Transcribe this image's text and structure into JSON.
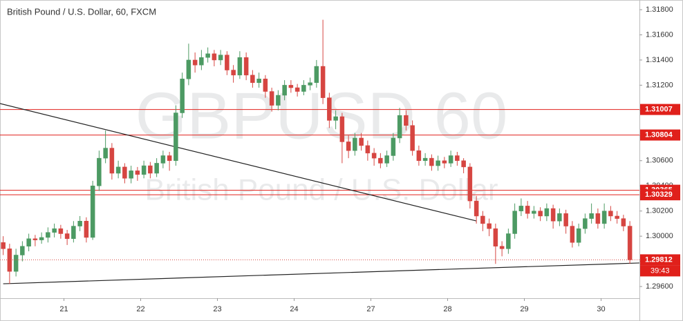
{
  "chart_data": {
    "type": "candlestick",
    "title": "British Pound / U.S. Dollar, 60, FXCM",
    "watermark": "GBPUSD 60",
    "watermark_subtitle": "British Pound / U.S. Dollar",
    "up_color": "#4c9a63",
    "down_color": "#d64541",
    "xlim": [
      0,
      200
    ],
    "xticks": [
      {
        "value": 20,
        "label": "21"
      },
      {
        "value": 44,
        "label": "22"
      },
      {
        "value": 68,
        "label": "23"
      },
      {
        "value": 92,
        "label": "24"
      },
      {
        "value": 116,
        "label": "27"
      },
      {
        "value": 140,
        "label": "28"
      },
      {
        "value": 164,
        "label": "29"
      },
      {
        "value": 188,
        "label": "30"
      }
    ],
    "ylim": [
      1.29507,
      1.31877
    ],
    "yticks": [
      {
        "value": 1.318,
        "label": "1.31800"
      },
      {
        "value": 1.316,
        "label": "1.31600"
      },
      {
        "value": 1.314,
        "label": "1.31400"
      },
      {
        "value": 1.312,
        "label": "1.31200"
      },
      {
        "value": 1.31,
        "label": "1.31000"
      },
      {
        "value": 1.308,
        "label": "1.30800"
      },
      {
        "value": 1.306,
        "label": "1.30600"
      },
      {
        "value": 1.304,
        "label": "1.30400"
      },
      {
        "value": 1.302,
        "label": "1.30200"
      },
      {
        "value": 1.3,
        "label": "1.30000"
      },
      {
        "value": 1.298,
        "label": "1.29800"
      },
      {
        "value": 1.296,
        "label": "1.29600"
      }
    ],
    "x": [
      1,
      3,
      5,
      7,
      9,
      11,
      13,
      15,
      17,
      19,
      21,
      23,
      25,
      27,
      29,
      31,
      33,
      35,
      37,
      39,
      41,
      43,
      45,
      47,
      49,
      51,
      53,
      55,
      57,
      59,
      61,
      63,
      65,
      67,
      69,
      71,
      73,
      75,
      77,
      79,
      81,
      83,
      85,
      87,
      89,
      91,
      93,
      95,
      97,
      99,
      101,
      103,
      105,
      107,
      109,
      111,
      113,
      115,
      117,
      119,
      121,
      123,
      125,
      127,
      129,
      131,
      133,
      135,
      137,
      139,
      141,
      143,
      145,
      147,
      149,
      151,
      153,
      155,
      157,
      159,
      161,
      163,
      165,
      167,
      169,
      171,
      173,
      175,
      177,
      179,
      181,
      183,
      185,
      187,
      189,
      191,
      193,
      195,
      197
    ],
    "values": [
      [
        1.2995,
        1.3,
        1.2985,
        1.299
      ],
      [
        1.299,
        1.2994,
        1.2962,
        1.2972
      ],
      [
        1.2972,
        1.299,
        1.2968,
        1.2985
      ],
      [
        1.2985,
        1.2996,
        1.298,
        1.2992
      ],
      [
        1.2992,
        1.3002,
        1.2988,
        1.2998
      ],
      [
        1.2998,
        1.3001,
        1.2992,
        1.2997
      ],
      [
        1.2997,
        1.3003,
        1.2994,
        1.2999
      ],
      [
        1.2999,
        1.3007,
        1.2995,
        1.3003
      ],
      [
        1.3003,
        1.301,
        1.2999,
        1.3006
      ],
      [
        1.3006,
        1.3009,
        1.2998,
        1.3002
      ],
      [
        1.3002,
        1.3005,
        1.2993,
        1.2998
      ],
      [
        1.2998,
        1.3012,
        1.2995,
        1.3008
      ],
      [
        1.3008,
        1.3016,
        1.3004,
        1.3012
      ],
      [
        1.3012,
        1.3015,
        1.2995,
        1.2999
      ],
      [
        1.2999,
        1.3044,
        1.2997,
        1.304
      ],
      [
        1.304,
        1.3068,
        1.3036,
        1.3062
      ],
      [
        1.3062,
        1.3084,
        1.3058,
        1.307
      ],
      [
        1.307,
        1.3074,
        1.3045,
        1.305
      ],
      [
        1.305,
        1.306,
        1.3046,
        1.3055
      ],
      [
        1.3055,
        1.3058,
        1.3042,
        1.3046
      ],
      [
        1.3046,
        1.3056,
        1.3042,
        1.3052
      ],
      [
        1.3052,
        1.3055,
        1.3044,
        1.3049
      ],
      [
        1.3049,
        1.306,
        1.3046,
        1.3056
      ],
      [
        1.3056,
        1.3059,
        1.3046,
        1.305
      ],
      [
        1.305,
        1.3062,
        1.3047,
        1.3058
      ],
      [
        1.3058,
        1.3068,
        1.3054,
        1.3064
      ],
      [
        1.3064,
        1.3067,
        1.3052,
        1.306
      ],
      [
        1.306,
        1.3104,
        1.3056,
        1.3098
      ],
      [
        1.3098,
        1.313,
        1.3094,
        1.3125
      ],
      [
        1.3125,
        1.3153,
        1.312,
        1.314
      ],
      [
        1.314,
        1.3146,
        1.313,
        1.3136
      ],
      [
        1.3136,
        1.3148,
        1.3132,
        1.3142
      ],
      [
        1.3142,
        1.315,
        1.3138,
        1.3145
      ],
      [
        1.3145,
        1.3148,
        1.3135,
        1.314
      ],
      [
        1.314,
        1.3148,
        1.3136,
        1.3144
      ],
      [
        1.3144,
        1.3147,
        1.3128,
        1.3132
      ],
      [
        1.3132,
        1.3136,
        1.3122,
        1.3128
      ],
      [
        1.3128,
        1.3147,
        1.3125,
        1.3142
      ],
      [
        1.3142,
        1.3146,
        1.3124,
        1.3128
      ],
      [
        1.3128,
        1.3132,
        1.3118,
        1.3122
      ],
      [
        1.3122,
        1.313,
        1.3118,
        1.3125
      ],
      [
        1.3125,
        1.3128,
        1.311,
        1.3115
      ],
      [
        1.3115,
        1.3118,
        1.3099,
        1.3104
      ],
      [
        1.3104,
        1.3116,
        1.31,
        1.3112
      ],
      [
        1.3112,
        1.3124,
        1.3108,
        1.312
      ],
      [
        1.312,
        1.3124,
        1.3114,
        1.3118
      ],
      [
        1.3118,
        1.3121,
        1.3111,
        1.3115
      ],
      [
        1.3115,
        1.3124,
        1.3112,
        1.312
      ],
      [
        1.312,
        1.3126,
        1.3116,
        1.3122
      ],
      [
        1.3122,
        1.314,
        1.3118,
        1.3135
      ],
      [
        1.3135,
        1.3172,
        1.3105,
        1.311
      ],
      [
        1.311,
        1.3114,
        1.3086,
        1.3092
      ],
      [
        1.3092,
        1.31,
        1.3085,
        1.3095
      ],
      [
        1.3095,
        1.3098,
        1.3058,
        1.3075
      ],
      [
        1.3075,
        1.308,
        1.3062,
        1.3068
      ],
      [
        1.3068,
        1.3082,
        1.3064,
        1.3078
      ],
      [
        1.3078,
        1.3082,
        1.3068,
        1.3072
      ],
      [
        1.3072,
        1.3076,
        1.306,
        1.3066
      ],
      [
        1.3066,
        1.307,
        1.3056,
        1.3062
      ],
      [
        1.3062,
        1.3066,
        1.3054,
        1.3058
      ],
      [
        1.3058,
        1.3068,
        1.3055,
        1.3064
      ],
      [
        1.3064,
        1.3082,
        1.306,
        1.3078
      ],
      [
        1.3078,
        1.3102,
        1.3074,
        1.3096
      ],
      [
        1.3096,
        1.31,
        1.3084,
        1.3088
      ],
      [
        1.3088,
        1.3092,
        1.3064,
        1.3068
      ],
      [
        1.3068,
        1.3072,
        1.3056,
        1.306
      ],
      [
        1.306,
        1.3066,
        1.3056,
        1.3062
      ],
      [
        1.3062,
        1.3065,
        1.3052,
        1.3056
      ],
      [
        1.3056,
        1.3064,
        1.3052,
        1.306
      ],
      [
        1.306,
        1.3063,
        1.3054,
        1.3058
      ],
      [
        1.3058,
        1.3068,
        1.3055,
        1.3064
      ],
      [
        1.3064,
        1.3067,
        1.3056,
        1.306
      ],
      [
        1.306,
        1.3062,
        1.305,
        1.3055
      ],
      [
        1.3055,
        1.3058,
        1.3022,
        1.3028
      ],
      [
        1.3028,
        1.3032,
        1.301,
        1.3016
      ],
      [
        1.3016,
        1.302,
        1.3004,
        1.301
      ],
      [
        1.301,
        1.3014,
        1.3,
        1.3006
      ],
      [
        1.3006,
        1.301,
        1.2978,
        1.2992
      ],
      [
        1.2992,
        1.2996,
        1.2984,
        1.299
      ],
      [
        1.299,
        1.3006,
        1.2986,
        1.3002
      ],
      [
        1.3002,
        1.3026,
        1.2998,
        1.302
      ],
      [
        1.302,
        1.303,
        1.3016,
        1.3024
      ],
      [
        1.3024,
        1.3028,
        1.3014,
        1.3018
      ],
      [
        1.3018,
        1.3024,
        1.3014,
        1.302
      ],
      [
        1.302,
        1.3023,
        1.3012,
        1.3016
      ],
      [
        1.3016,
        1.3026,
        1.3012,
        1.3022
      ],
      [
        1.3022,
        1.3025,
        1.3006,
        1.3012
      ],
      [
        1.3012,
        1.3022,
        1.3008,
        1.3018
      ],
      [
        1.3018,
        1.3021,
        1.3002,
        1.3008
      ],
      [
        1.3008,
        1.3012,
        1.2991,
        1.2995
      ],
      [
        1.2995,
        1.301,
        1.2992,
        1.3006
      ],
      [
        1.3006,
        1.3018,
        1.3002,
        1.3014
      ],
      [
        1.3014,
        1.3026,
        1.301,
        1.3018
      ],
      [
        1.3018,
        1.3022,
        1.3006,
        1.301
      ],
      [
        1.301,
        1.3026,
        1.3006,
        1.302
      ],
      [
        1.302,
        1.3024,
        1.3012,
        1.3016
      ],
      [
        1.3016,
        1.302,
        1.301,
        1.3014
      ],
      [
        1.3014,
        1.3017,
        1.3004,
        1.3008
      ],
      [
        1.3008,
        1.3012,
        1.2978,
        1.29812
      ]
    ],
    "levels": [
      1.31007,
      1.30804,
      1.30365,
      1.30329
    ],
    "level_color": "#e0201b",
    "last_price": 1.29812,
    "countdown": "39:43",
    "trendlines": [
      {
        "x": [
          0,
          149
        ],
        "y": [
          1.31054,
          1.30121
        ]
      },
      {
        "x": [
          1,
          200
        ],
        "y": [
          1.29622,
          1.29787
        ]
      }
    ]
  }
}
